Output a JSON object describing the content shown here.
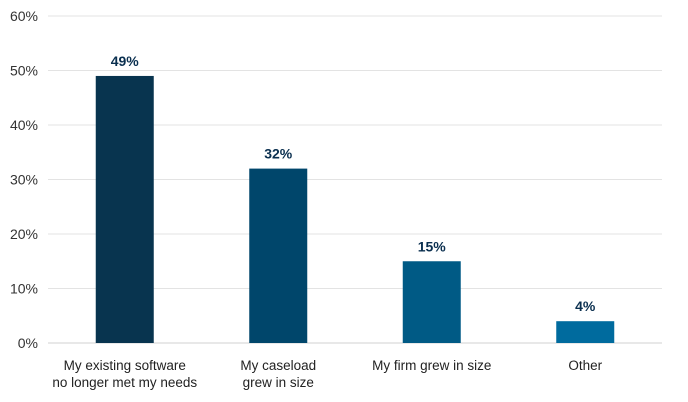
{
  "chart_data": {
    "type": "bar",
    "categories": [
      [
        "My existing software",
        "no longer met my needs"
      ],
      [
        "My caseload",
        "grew in size"
      ],
      [
        "My firm grew in size"
      ],
      [
        "Other"
      ]
    ],
    "values": [
      49,
      32,
      15,
      4
    ],
    "data_labels": [
      "49%",
      "32%",
      "15%",
      "4%"
    ],
    "bar_colors": [
      "#08344f",
      "#00466b",
      "#005a85",
      "#006b9e"
    ],
    "ylim": [
      0,
      60
    ],
    "yticks": [
      0,
      10,
      20,
      30,
      40,
      50,
      60
    ],
    "ytick_labels": [
      "0%",
      "10%",
      "20%",
      "30%",
      "40%",
      "50%",
      "60%"
    ],
    "grid": true,
    "title": "",
    "xlabel": "",
    "ylabel": ""
  }
}
